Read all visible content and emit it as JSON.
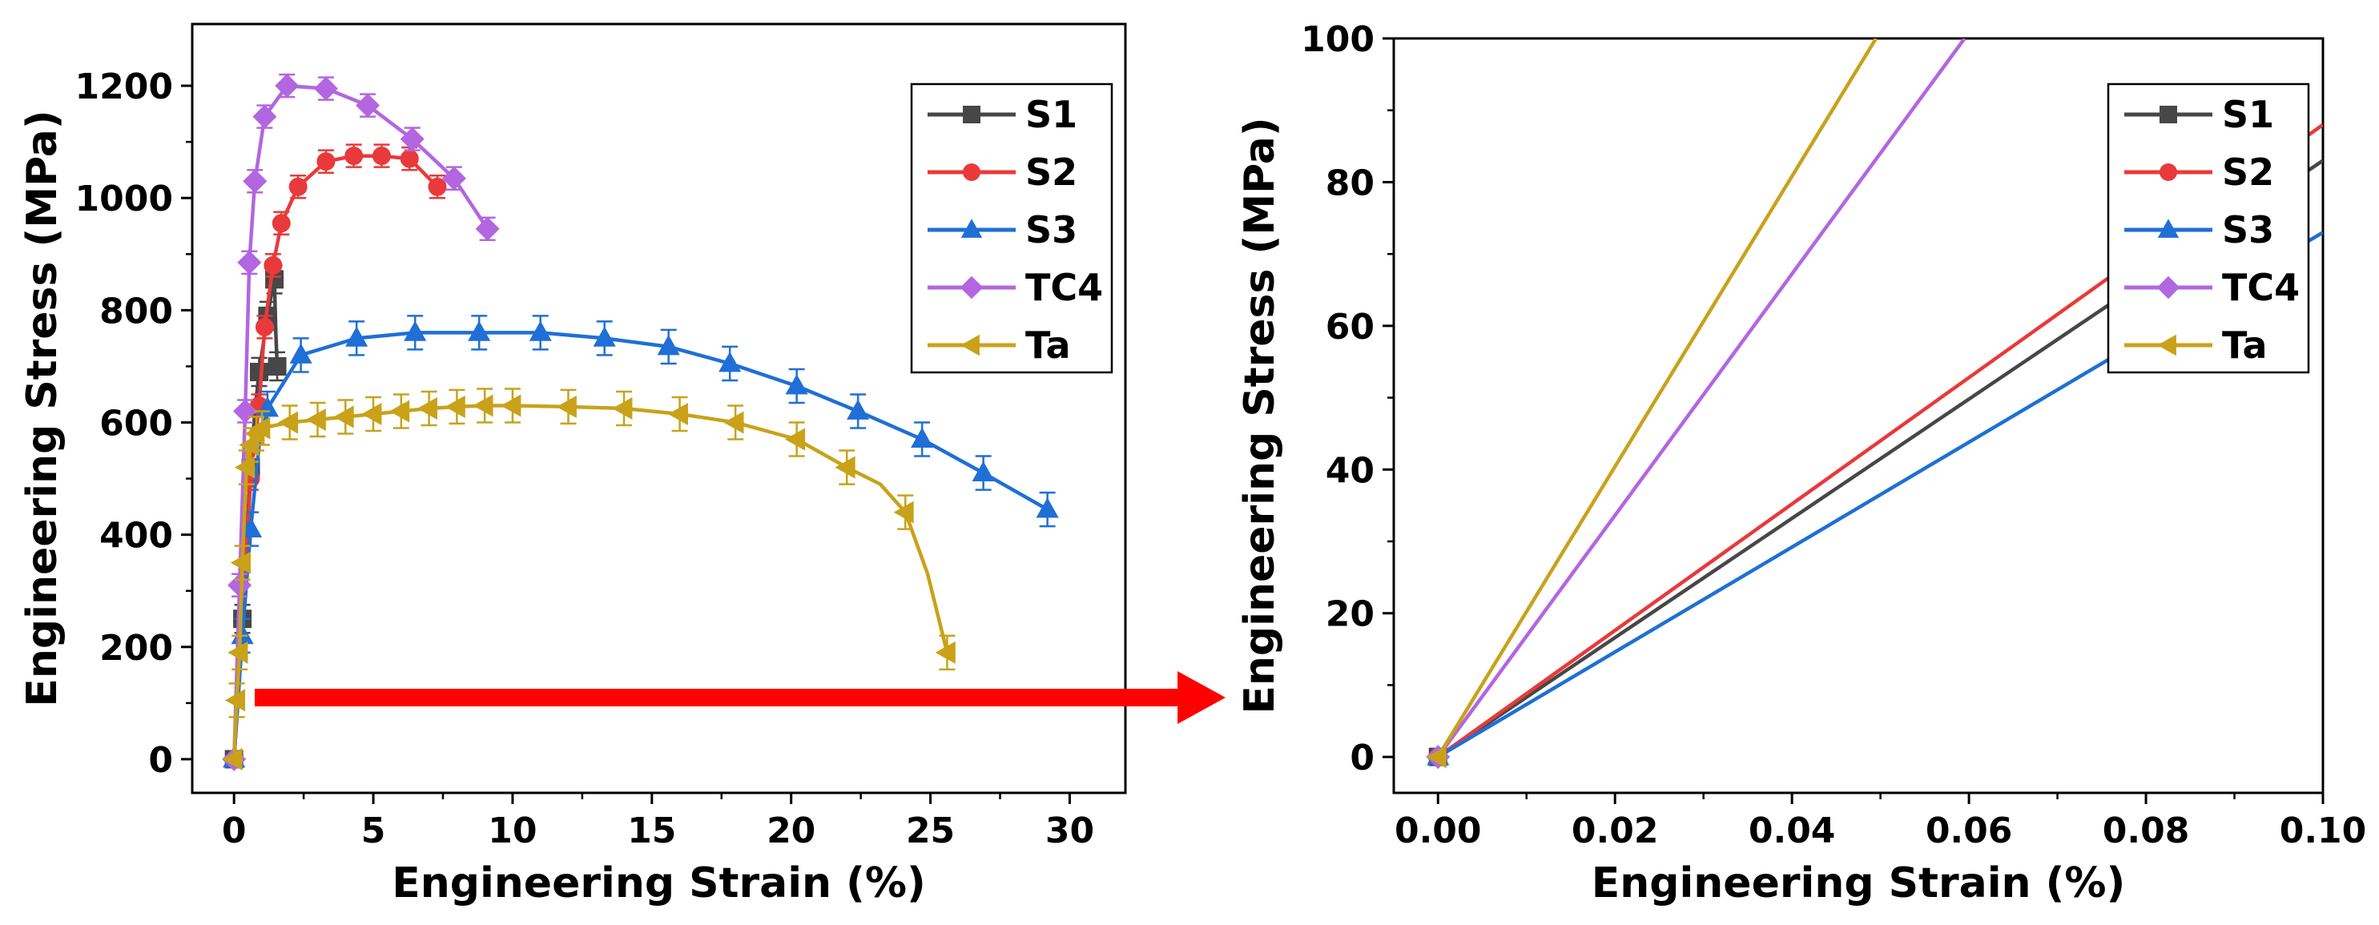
{
  "chart_data": [
    {
      "type": "line",
      "xlabel": "Engineering Strain (%)",
      "ylabel": "Engineering Stress (MPa)",
      "xlim": [
        -1.5,
        32
      ],
      "ylim": [
        -60,
        1310
      ],
      "xticks": [
        0,
        5,
        10,
        15,
        20,
        25,
        30
      ],
      "yticks": [
        0,
        200,
        400,
        600,
        800,
        1000,
        1200
      ],
      "xtick_labels": [
        "0",
        "5",
        "10",
        "15",
        "20",
        "25",
        "30"
      ],
      "ytick_labels": [
        "0",
        "200",
        "400",
        "600",
        "800",
        "1000",
        "1200"
      ],
      "legend_position": "top-right",
      "series": [
        {
          "name": "S1",
          "color": "#474747",
          "marker": "square",
          "x": [
            0,
            0.15,
            0.3,
            0.45,
            0.6,
            0.75,
            0.9,
            1.05,
            1.2,
            1.35,
            1.45,
            1.5,
            1.55
          ],
          "y": [
            0,
            120,
            250,
            390,
            520,
            620,
            690,
            740,
            790,
            830,
            855,
            760,
            700
          ],
          "marker_idx": [
            0,
            2,
            4,
            6,
            8,
            10,
            12
          ],
          "err": 25
        },
        {
          "name": "S2",
          "color": "#e83a3a",
          "marker": "circle",
          "x": [
            0,
            0.3,
            0.6,
            0.9,
            1.1,
            1.4,
            1.7,
            2.3,
            3.3,
            4.3,
            5.3,
            6.3,
            7.3
          ],
          "y": [
            0,
            250,
            500,
            630,
            770,
            880,
            955,
            1020,
            1065,
            1075,
            1075,
            1070,
            1020
          ],
          "marker_idx": [
            2,
            3,
            4,
            5,
            6,
            7,
            8,
            9,
            10,
            11,
            12
          ],
          "err": 20
        },
        {
          "name": "S3",
          "color": "#1f6fd6",
          "marker": "triangle-up",
          "x": [
            0,
            0.3,
            0.6,
            0.9,
            1.2,
            2.4,
            4.4,
            6.5,
            8.8,
            11,
            13.3,
            15.6,
            17.8,
            20.2,
            22.4,
            24.7,
            26.9,
            29.2
          ],
          "y": [
            0,
            220,
            410,
            560,
            625,
            720,
            750,
            760,
            760,
            760,
            750,
            735,
            705,
            665,
            620,
            570,
            510,
            445
          ],
          "marker_idx": [
            0,
            1,
            2,
            4,
            5,
            6,
            7,
            8,
            9,
            10,
            11,
            12,
            13,
            14,
            15,
            16,
            17
          ],
          "err": 30
        },
        {
          "name": "TC4",
          "color": "#b266e0",
          "marker": "diamond",
          "x": [
            0,
            0.2,
            0.4,
            0.55,
            0.75,
            1.1,
            1.9,
            3.3,
            4.8,
            6.4,
            7.9,
            9.1
          ],
          "y": [
            0,
            310,
            620,
            885,
            1030,
            1145,
            1200,
            1195,
            1165,
            1105,
            1035,
            945
          ],
          "marker_idx": [
            0,
            1,
            2,
            3,
            4,
            5,
            6,
            7,
            8,
            9,
            10,
            11
          ],
          "err": 20
        },
        {
          "name": "Ta",
          "color": "#c9a21a",
          "marker": "triangle-left",
          "x": [
            0,
            0.1,
            0.2,
            0.3,
            0.45,
            0.6,
            0.8,
            1,
            2,
            3,
            4,
            5,
            6,
            7,
            8,
            9,
            10,
            12,
            14,
            16,
            18,
            20.2,
            22,
            23.2,
            24.1,
            24.9,
            25.6
          ],
          "y": [
            0,
            105,
            190,
            350,
            520,
            560,
            580,
            590,
            600,
            605,
            610,
            615,
            620,
            625,
            628,
            630,
            630,
            628,
            625,
            615,
            600,
            570,
            520,
            490,
            440,
            330,
            190
          ],
          "marker_idx": [
            0,
            1,
            2,
            3,
            4,
            5,
            6,
            7,
            8,
            9,
            10,
            11,
            12,
            13,
            14,
            15,
            16,
            17,
            18,
            19,
            20,
            21,
            22,
            24,
            26
          ],
          "err": 30
        }
      ]
    },
    {
      "type": "line",
      "xlabel": "Engineering Strain (%)",
      "ylabel": "Engineering Stress (MPa)",
      "xlim": [
        -0.005,
        0.1
      ],
      "ylim": [
        -5,
        100
      ],
      "xticks": [
        0,
        0.02,
        0.04,
        0.06,
        0.08,
        0.1
      ],
      "yticks": [
        0,
        20,
        40,
        60,
        80,
        100
      ],
      "xtick_labels": [
        "0.00",
        "0.02",
        "0.04",
        "0.06",
        "0.08",
        "0.10"
      ],
      "ytick_labels": [
        "0",
        "20",
        "40",
        "60",
        "80",
        "100"
      ],
      "legend_position": "top-right",
      "series": [
        {
          "name": "S1",
          "color": "#474747",
          "marker": "square",
          "x": [
            0,
            0.1
          ],
          "y": [
            0,
            83
          ]
        },
        {
          "name": "S2",
          "color": "#e83a3a",
          "marker": "circle",
          "x": [
            0,
            0.1
          ],
          "y": [
            0,
            88
          ]
        },
        {
          "name": "S3",
          "color": "#1f6fd6",
          "marker": "triangle-up",
          "x": [
            0,
            0.1
          ],
          "y": [
            0,
            73
          ]
        },
        {
          "name": "TC4",
          "color": "#b266e0",
          "marker": "diamond",
          "x": [
            0,
            0.0595
          ],
          "y": [
            0,
            100
          ]
        },
        {
          "name": "Ta",
          "color": "#c9a21a",
          "marker": "triangle-left",
          "x": [
            0,
            0.0495
          ],
          "y": [
            0,
            100
          ]
        }
      ]
    }
  ],
  "annotation": {
    "arrow_color": "#ff0000"
  }
}
